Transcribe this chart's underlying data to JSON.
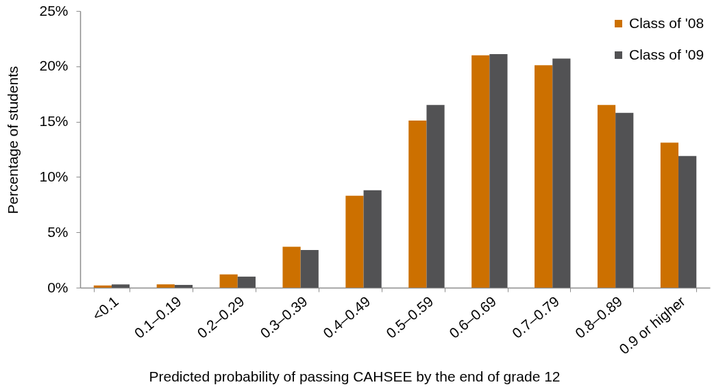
{
  "chart_data": {
    "type": "bar",
    "xlabel": "Predicted probability of passing CAHSEE by the end of grade 12",
    "ylabel": "Percentage of students",
    "categories": [
      "<0.1",
      "0.1–0.19",
      "0.2–0.29",
      "0.3–0.39",
      "0.4–0.49",
      "0.5–0.59",
      "0.6–0.69",
      "0.7–0.79",
      "0.8–0.89",
      "0.9 or higher"
    ],
    "series": [
      {
        "name": "Class of '08",
        "color": "#cc7000",
        "values": [
          0.2,
          0.3,
          1.2,
          3.7,
          8.3,
          15.1,
          21.0,
          20.1,
          16.5,
          13.1
        ]
      },
      {
        "name": "Class of '09",
        "color": "#525254",
        "values": [
          0.3,
          0.25,
          1.0,
          3.4,
          8.8,
          16.5,
          21.1,
          20.7,
          15.8,
          11.9
        ]
      }
    ],
    "ylim": [
      0,
      25
    ],
    "yticks": [
      {
        "value": 0,
        "label": "0%"
      },
      {
        "value": 5,
        "label": "5%"
      },
      {
        "value": 10,
        "label": "10%"
      },
      {
        "value": 15,
        "label": "15%"
      },
      {
        "value": 20,
        "label": "20%"
      },
      {
        "value": 25,
        "label": "25%"
      }
    ],
    "legend": "top right"
  }
}
